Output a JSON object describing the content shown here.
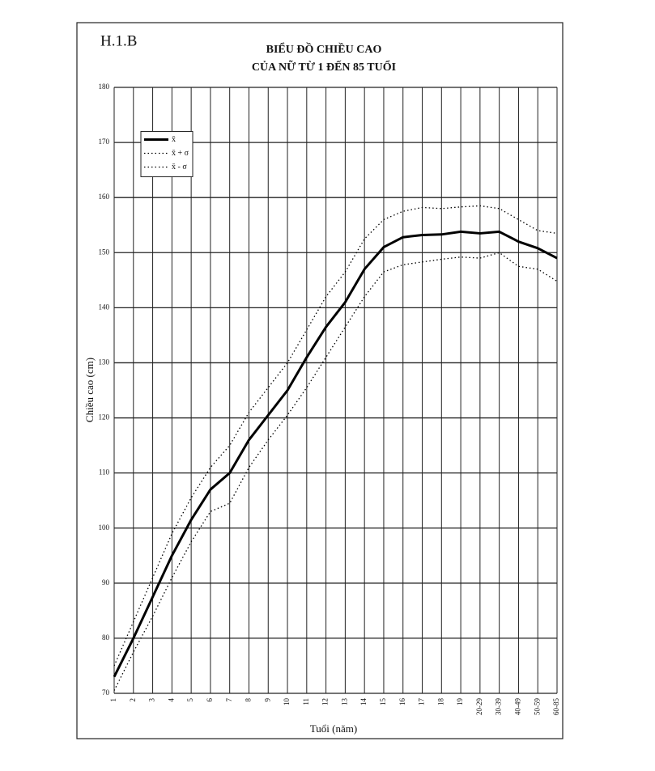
{
  "figure_label": "H.1.B",
  "chart_data": {
    "type": "line",
    "title": [
      "BIỂU ĐỒ CHIỀU CAO",
      "CỦA NỮ TỪ 1 ĐẾN 85 TUỔI"
    ],
    "x_label": "Tuổi (năm)",
    "y_label": "Chiều cao (cm)",
    "categories": [
      "1",
      "2",
      "3",
      "4",
      "5",
      "6",
      "7",
      "8",
      "9",
      "10",
      "11",
      "12",
      "13",
      "14",
      "15",
      "16",
      "17",
      "18",
      "19",
      "20-29",
      "30-39",
      "40-49",
      "50-59",
      "60-85"
    ],
    "series": [
      {
        "name": "x̄",
        "color": "#000000",
        "style": "solid",
        "values": [
          73,
          80,
          87.5,
          95,
          101.5,
          107,
          110,
          116,
          120.5,
          125,
          131,
          136.5,
          141,
          147,
          151,
          152.8,
          153.2,
          153.3,
          153.8,
          153.5,
          153.8,
          152,
          150.8,
          149
        ]
      },
      {
        "name": "x̄ + σ",
        "color": "#000000",
        "style": "dotted",
        "values": [
          75,
          83,
          91,
          99,
          105.5,
          111,
          115,
          121,
          125.5,
          130,
          136,
          142,
          146.5,
          152.5,
          156,
          157.5,
          158.2,
          158,
          158.3,
          158.5,
          158,
          156,
          154,
          153.5
        ]
      },
      {
        "name": "x̄ - σ",
        "color": "#000000",
        "style": "dotted",
        "values": [
          70.5,
          77.5,
          84,
          91,
          97.5,
          103,
          104.5,
          111,
          116,
          120.5,
          125.5,
          131,
          136.5,
          142,
          146.5,
          147.8,
          148.3,
          148.8,
          149.2,
          149,
          150,
          147.5,
          147,
          144.8
        ]
      }
    ],
    "ylim": [
      70,
      180
    ],
    "yticks": [
      70,
      80,
      90,
      100,
      110,
      120,
      130,
      140,
      150,
      160,
      170,
      180
    ],
    "grid": true,
    "legend": "top-left"
  }
}
